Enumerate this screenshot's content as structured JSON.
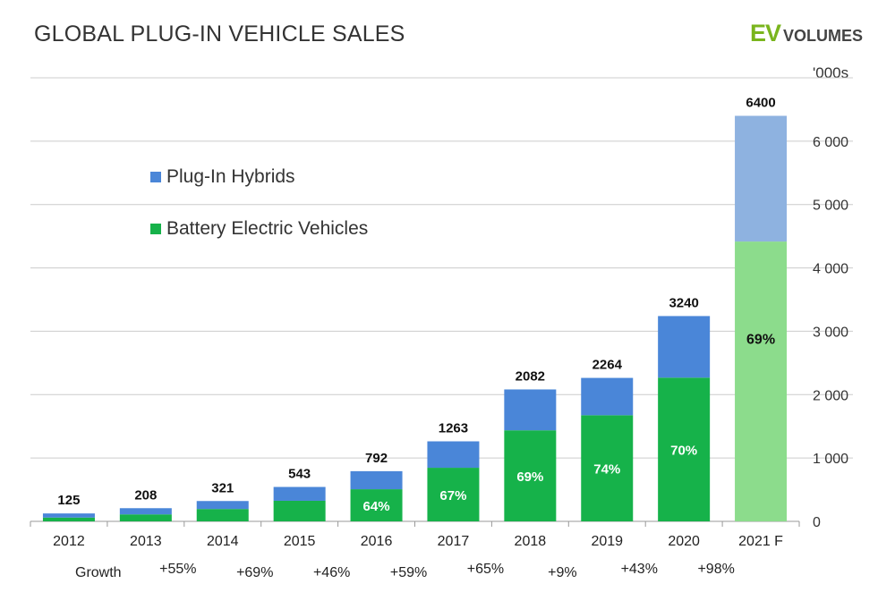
{
  "title": "GLOBAL PLUG-IN VEHICLE SALES",
  "brand": {
    "ev": "EV",
    "volumes": "VOLUMES"
  },
  "unit": "'000s",
  "legend": [
    {
      "label": "Plug-In Hybrids",
      "color": "#4a86d8"
    },
    {
      "label": "Battery Electric Vehicles",
      "color": "#16b24a"
    }
  ],
  "growth": {
    "title": "Growth",
    "values": [
      "+55%",
      "+69%",
      "+46%",
      "+59%",
      "+65%",
      "+9%",
      "+43%",
      "+98%"
    ]
  },
  "colors": {
    "phev": "#4a86d8",
    "bev": "#16b24a",
    "phev_forecast": "#8eb2e0",
    "bev_forecast": "#8cdc8c",
    "grid": "#cccccc",
    "axis": "#999999"
  },
  "chart_data": {
    "type": "bar",
    "stacked": true,
    "title": "GLOBAL PLUG-IN VEHICLE SALES",
    "ylabel": "'000s",
    "ylim": [
      0,
      7000
    ],
    "yticks": [
      0,
      1000,
      2000,
      3000,
      4000,
      5000,
      6000
    ],
    "ytick_labels": [
      "0",
      "1 000",
      "2 000",
      "3 000",
      "4 000",
      "5 000",
      "6 000"
    ],
    "grid": true,
    "legend_position": "top-left",
    "y_axis_position": "right",
    "categories": [
      "2012",
      "2013",
      "2014",
      "2015",
      "2016",
      "2017",
      "2018",
      "2019",
      "2020",
      "2021 F"
    ],
    "totals": [
      125,
      208,
      321,
      543,
      792,
      1263,
      2082,
      2264,
      3240,
      6400
    ],
    "totals_labels": [
      "125",
      "208",
      "321",
      "543",
      "792",
      "1263",
      "2082",
      "2264",
      "3240",
      "6400"
    ],
    "series": [
      {
        "name": "Battery Electric Vehicles",
        "values": [
          60,
          110,
          195,
          325,
          507,
          846,
          1437,
          1675,
          2268,
          4416
        ]
      },
      {
        "name": "Plug-In Hybrids",
        "values": [
          65,
          98,
          126,
          218,
          285,
          417,
          645,
          589,
          972,
          1984
        ]
      }
    ],
    "bev_share_labels": [
      "",
      "",
      "",
      "",
      "64%",
      "67%",
      "69%",
      "74%",
      "70%",
      "69%"
    ],
    "forecast_index": 9
  }
}
